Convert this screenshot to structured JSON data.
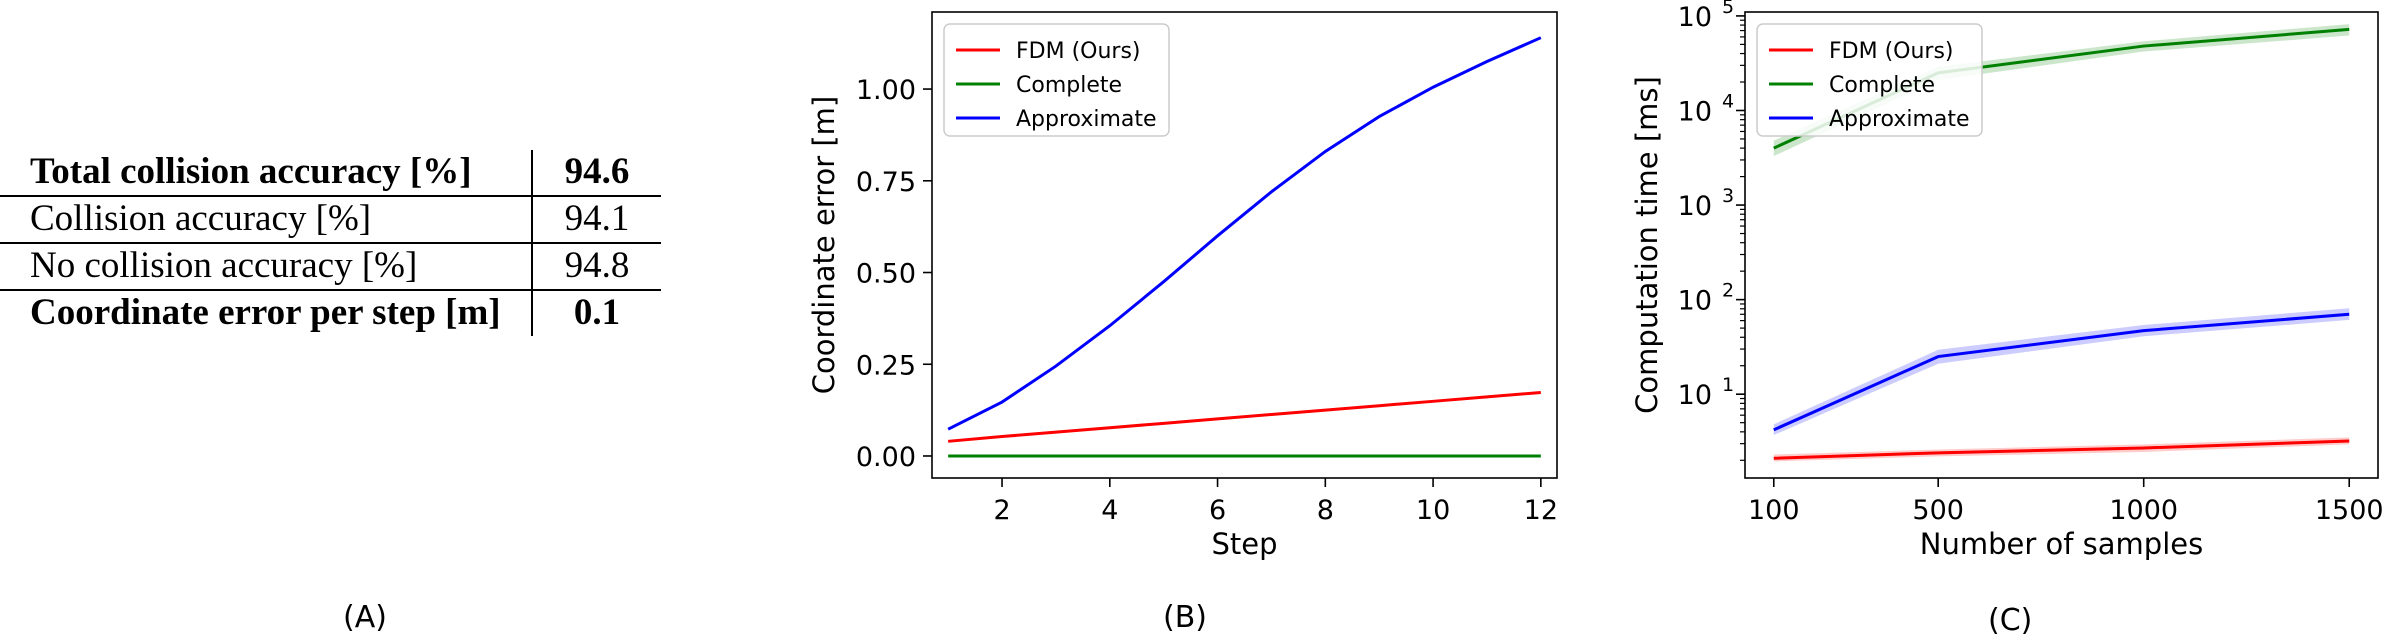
{
  "table": {
    "rows": [
      {
        "label": "Total collision accuracy [%]",
        "value": "94.6",
        "bold": true
      },
      {
        "label": "Collision accuracy [%]",
        "value": "94.1",
        "bold": false
      },
      {
        "label": "No collision accuracy [%]",
        "value": "94.8",
        "bold": false
      },
      {
        "label": "Coordinate error per step [m]",
        "value": "0.1",
        "bold": true
      }
    ]
  },
  "panel_labels": [
    "(A)",
    "(B)",
    "(C)"
  ],
  "chart_data": [
    {
      "type": "line",
      "xlabel": "Step",
      "ylabel": "Coordinate error [m]",
      "xlim": [
        0.7,
        12.3
      ],
      "ylim": [
        -0.06,
        1.21
      ],
      "x_ticks": [
        2,
        4,
        6,
        8,
        10,
        12
      ],
      "y_ticks": [
        0.0,
        0.25,
        0.5,
        0.75,
        1.0
      ],
      "y_tick_labels": [
        "0.00",
        "0.25",
        "0.50",
        "0.75",
        "1.00"
      ],
      "legend": "top-left",
      "x": [
        1,
        2,
        3,
        4,
        5,
        6,
        7,
        8,
        9,
        10,
        11,
        12
      ],
      "series": [
        {
          "name": "FDM (Ours)",
          "color": "#ff0000",
          "values": [
            0.04,
            0.053,
            0.065,
            0.077,
            0.089,
            0.101,
            0.113,
            0.125,
            0.137,
            0.149,
            0.161,
            0.173
          ]
        },
        {
          "name": "Complete",
          "color": "#008000",
          "values": [
            0,
            0,
            0,
            0,
            0,
            0,
            0,
            0,
            0,
            0,
            0,
            0
          ]
        },
        {
          "name": "Approximate",
          "color": "#0000ff",
          "values": [
            0.073,
            0.147,
            0.245,
            0.355,
            0.475,
            0.6,
            0.72,
            0.83,
            0.925,
            1.005,
            1.075,
            1.14
          ]
        }
      ]
    },
    {
      "type": "line",
      "xlabel": "Number of samples",
      "ylabel": "Computation time [ms]",
      "yscale": "log",
      "xlim": [
        30,
        1570
      ],
      "ylim": [
        1.3,
        110000
      ],
      "x_ticks": [
        100,
        500,
        1000,
        1500
      ],
      "y_ticks": [
        10,
        100,
        1000,
        10000,
        100000
      ],
      "y_tick_labels": [
        "10",
        "10",
        "10",
        "10",
        "10"
      ],
      "y_tick_exponents": [
        "1",
        "2",
        "3",
        "4",
        "5"
      ],
      "legend": "top-left",
      "x": [
        100,
        500,
        1000,
        1500
      ],
      "series": [
        {
          "name": "FDM (Ours)",
          "color": "#ff0000",
          "values": [
            2.1,
            2.4,
            2.7,
            3.2
          ],
          "band_low": [
            1.95,
            2.2,
            2.45,
            2.95
          ],
          "band_high": [
            2.3,
            2.6,
            2.95,
            3.5
          ]
        },
        {
          "name": "Complete",
          "color": "#008000",
          "values": [
            4000,
            25000,
            48000,
            72000
          ],
          "band_low": [
            3300,
            21000,
            42000,
            62000
          ],
          "band_high": [
            4800,
            29000,
            54000,
            82000
          ]
        },
        {
          "name": "Approximate",
          "color": "#0000ff",
          "values": [
            4.2,
            25,
            47,
            70
          ],
          "band_low": [
            3.7,
            21,
            41,
            61
          ],
          "band_high": [
            4.8,
            29.5,
            54,
            81
          ]
        }
      ]
    }
  ]
}
